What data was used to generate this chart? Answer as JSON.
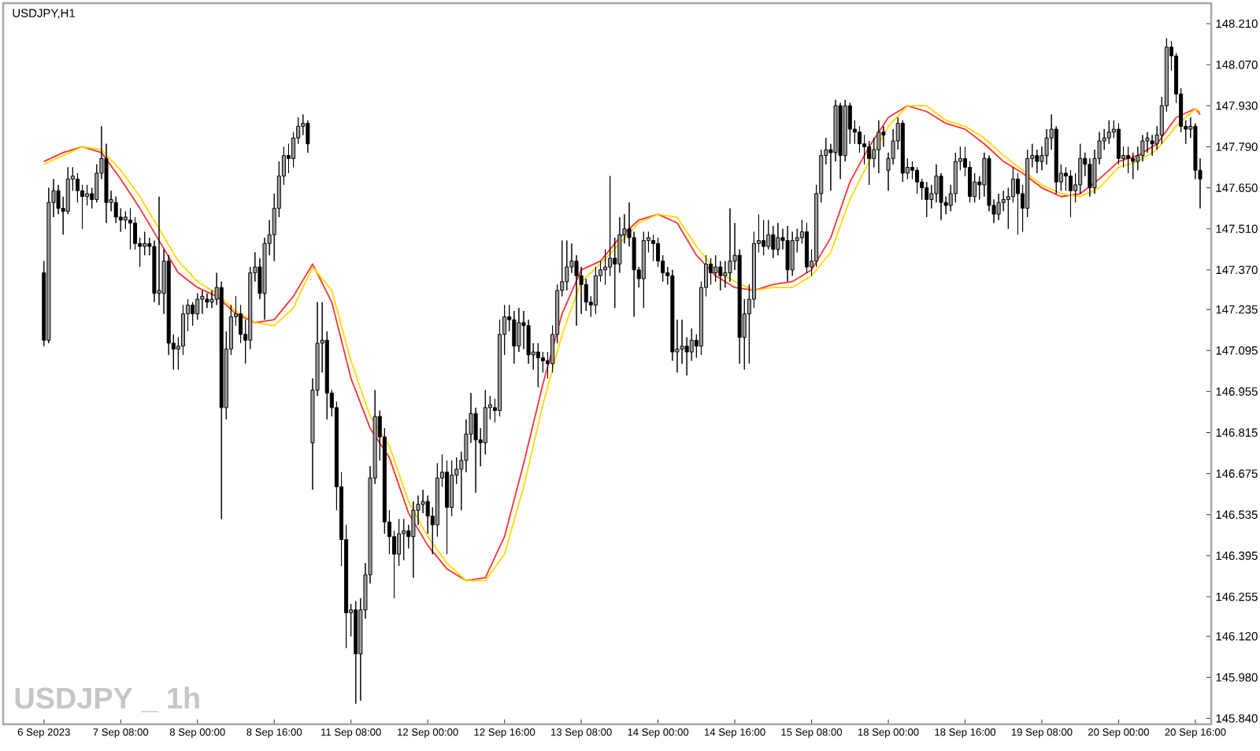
{
  "chart_data": {
    "type": "candlestick",
    "title": "USDJPY,H1",
    "annotations": [
      "USDJPY _ 1h"
    ],
    "categories": [
      "6 Sep 2023",
      null,
      null,
      null,
      null,
      null,
      null,
      null,
      null,
      null,
      null,
      null,
      null,
      null,
      null,
      null,
      "7 Sep 08:00",
      null,
      null,
      null,
      null,
      null,
      null,
      null,
      null,
      null,
      null,
      null,
      null,
      null,
      null,
      null,
      "8 Sep 00:00",
      null,
      null,
      null,
      null,
      null,
      null,
      null,
      null,
      null,
      null,
      null,
      null,
      null,
      null,
      null,
      "8 Sep 16:00",
      null,
      null,
      null,
      null,
      null,
      null,
      null,
      null,
      null,
      null,
      null,
      null,
      null,
      null,
      null,
      "11 Sep 08:00",
      null,
      null,
      null,
      null,
      null,
      null,
      null,
      null,
      null,
      null,
      null,
      null,
      null,
      null,
      null,
      "12 Sep 00:00",
      null,
      null,
      null,
      null,
      null,
      null,
      null,
      null,
      null,
      null,
      null,
      null,
      null,
      null,
      null,
      "12 Sep 16:00",
      null,
      null,
      null,
      null,
      null,
      null,
      null,
      null,
      null,
      null,
      null,
      null,
      null,
      null,
      null,
      "13 Sep 08:00",
      null,
      null,
      null,
      null,
      null,
      null,
      null,
      null,
      null,
      null,
      null,
      null,
      null,
      null,
      null,
      "14 Sep 00:00",
      null,
      null,
      null,
      null,
      null,
      null,
      null,
      null,
      null,
      null,
      null,
      null,
      null,
      null,
      null,
      "14 Sep 16:00",
      null,
      null,
      null,
      null,
      null,
      null,
      null,
      null,
      null,
      null,
      null,
      null,
      null,
      null,
      null,
      "15 Sep 08:00",
      null,
      null,
      null,
      null,
      null,
      null,
      null,
      null,
      null,
      null,
      null,
      null,
      null,
      null,
      null,
      "18 Sep 00:00",
      null,
      null,
      null,
      null,
      null,
      null,
      null,
      null,
      null,
      null,
      null,
      null,
      null,
      null,
      null,
      "18 Sep 16:00",
      null,
      null,
      null,
      null,
      null,
      null,
      null,
      null,
      null,
      null,
      null,
      null,
      null,
      null,
      null,
      "19 Sep 08:00",
      null,
      null,
      null,
      null,
      null,
      null,
      null,
      null,
      null,
      null,
      null,
      null,
      null,
      null,
      null,
      "20 Sep 00:00",
      null,
      null,
      null,
      null,
      null,
      null,
      null,
      null,
      null,
      null,
      null,
      null,
      null,
      null,
      null,
      "20 Sep 16:00",
      null
    ],
    "ohlc": [
      [
        147.36,
        147.4,
        147.11,
        147.13
      ],
      [
        147.13,
        147.65,
        147.12,
        147.6
      ],
      [
        147.6,
        147.68,
        147.55,
        147.64
      ],
      [
        147.64,
        147.66,
        147.56,
        147.58
      ],
      [
        147.58,
        147.62,
        147.49,
        147.57
      ],
      [
        147.57,
        147.72,
        147.56,
        147.68
      ],
      [
        147.68,
        147.72,
        147.64,
        147.69
      ],
      [
        147.68,
        147.7,
        147.6,
        147.64
      ],
      [
        147.64,
        147.66,
        147.51,
        147.62
      ],
      [
        147.62,
        147.66,
        147.59,
        147.63
      ],
      [
        147.63,
        147.65,
        147.58,
        147.61
      ],
      [
        147.61,
        147.73,
        147.6,
        147.7
      ],
      [
        147.7,
        147.86,
        147.68,
        147.75
      ],
      [
        147.75,
        147.8,
        147.53,
        147.6
      ],
      [
        147.6,
        147.64,
        147.57,
        147.61
      ],
      [
        147.6,
        147.62,
        147.53,
        147.55
      ],
      [
        147.55,
        147.58,
        147.5,
        147.54
      ],
      [
        147.54,
        147.57,
        147.51,
        147.55
      ],
      [
        147.54,
        147.58,
        147.44,
        147.53
      ],
      [
        147.53,
        147.55,
        147.44,
        147.46
      ],
      [
        147.46,
        147.48,
        147.38,
        147.45
      ],
      [
        147.45,
        147.5,
        147.42,
        147.46
      ],
      [
        147.46,
        147.48,
        147.42,
        147.45
      ],
      [
        147.45,
        147.47,
        147.26,
        147.29
      ],
      [
        147.29,
        147.62,
        147.25,
        147.3
      ],
      [
        147.29,
        147.44,
        147.22,
        147.4
      ],
      [
        147.4,
        147.42,
        147.08,
        147.12
      ],
      [
        147.12,
        147.15,
        147.03,
        147.1
      ],
      [
        147.1,
        147.14,
        147.03,
        147.11
      ],
      [
        147.11,
        147.25,
        147.08,
        147.22
      ],
      [
        147.22,
        147.27,
        147.16,
        147.25
      ],
      [
        147.25,
        147.26,
        147.18,
        147.22
      ],
      [
        147.22,
        147.29,
        147.2,
        147.27
      ],
      [
        147.27,
        147.3,
        147.22,
        147.28
      ],
      [
        147.27,
        147.29,
        147.24,
        147.26
      ],
      [
        147.26,
        147.3,
        147.24,
        147.27
      ],
      [
        147.27,
        147.36,
        147.25,
        147.31
      ],
      [
        147.31,
        147.33,
        146.52,
        146.9
      ],
      [
        146.9,
        147.16,
        146.86,
        147.1
      ],
      [
        147.1,
        147.25,
        147.08,
        147.21
      ],
      [
        147.21,
        147.28,
        147.18,
        147.22
      ],
      [
        147.22,
        147.25,
        147.12,
        147.15
      ],
      [
        147.15,
        147.2,
        147.05,
        147.13
      ],
      [
        147.13,
        147.38,
        147.1,
        147.36
      ],
      [
        147.36,
        147.43,
        147.33,
        147.38
      ],
      [
        147.38,
        147.41,
        147.27,
        147.29
      ],
      [
        147.29,
        147.48,
        147.2,
        147.46
      ],
      [
        147.46,
        147.54,
        147.42,
        147.49
      ],
      [
        147.49,
        147.63,
        147.4,
        147.58
      ],
      [
        147.58,
        147.74,
        147.55,
        147.69
      ],
      [
        147.69,
        147.79,
        147.66,
        147.76
      ],
      [
        147.76,
        147.8,
        147.7,
        147.75
      ],
      [
        147.75,
        147.84,
        147.72,
        147.82
      ],
      [
        147.82,
        147.89,
        147.8,
        147.86
      ],
      [
        147.86,
        147.9,
        147.83,
        147.87
      ],
      [
        147.87,
        147.88,
        147.77,
        147.8
      ],
      [
        146.78,
        147.0,
        146.62,
        146.96
      ],
      [
        146.96,
        147.26,
        146.94,
        147.12
      ],
      [
        147.12,
        147.26,
        147.02,
        147.13
      ],
      [
        147.13,
        147.16,
        146.86,
        146.95
      ],
      [
        146.95,
        146.96,
        146.87,
        146.9
      ],
      [
        146.9,
        146.92,
        146.55,
        146.63
      ],
      [
        146.63,
        146.68,
        146.36,
        146.45
      ],
      [
        146.45,
        146.5,
        146.08,
        146.2
      ],
      [
        146.2,
        146.23,
        146.12,
        146.21
      ],
      [
        146.21,
        146.24,
        145.89,
        146.06
      ],
      [
        146.06,
        146.25,
        145.9,
        146.21
      ],
      [
        146.21,
        146.37,
        146.18,
        146.33
      ],
      [
        146.33,
        146.7,
        146.3,
        146.66
      ],
      [
        146.66,
        146.96,
        146.64,
        146.87
      ],
      [
        146.87,
        146.89,
        146.72,
        146.8
      ],
      [
        146.8,
        146.83,
        146.47,
        146.51
      ],
      [
        146.51,
        146.55,
        146.4,
        146.46
      ],
      [
        146.46,
        146.48,
        146.25,
        146.4
      ],
      [
        146.4,
        146.52,
        146.36,
        146.47
      ],
      [
        146.47,
        146.52,
        146.38,
        146.48
      ],
      [
        146.48,
        146.5,
        146.42,
        146.46
      ],
      [
        146.46,
        146.58,
        146.32,
        146.55
      ],
      [
        146.55,
        146.6,
        146.5,
        146.57
      ],
      [
        146.57,
        146.62,
        146.54,
        146.58
      ],
      [
        146.58,
        146.6,
        146.47,
        146.53
      ],
      [
        146.53,
        146.56,
        146.4,
        146.5
      ],
      [
        146.5,
        146.71,
        146.46,
        146.66
      ],
      [
        146.66,
        146.74,
        146.63,
        146.68
      ],
      [
        146.68,
        146.72,
        146.4,
        146.56
      ],
      [
        146.56,
        146.72,
        146.53,
        146.67
      ],
      [
        146.67,
        146.73,
        146.64,
        146.69
      ],
      [
        146.69,
        146.75,
        146.55,
        146.72
      ],
      [
        146.72,
        146.86,
        146.68,
        146.81
      ],
      [
        146.81,
        146.95,
        146.78,
        146.88
      ],
      [
        146.88,
        146.9,
        146.61,
        146.79
      ],
      [
        146.79,
        146.83,
        146.7,
        146.78
      ],
      [
        146.78,
        146.96,
        146.74,
        146.9
      ],
      [
        146.9,
        146.94,
        146.86,
        146.91
      ],
      [
        146.9,
        146.93,
        146.85,
        146.89
      ],
      [
        146.89,
        147.2,
        146.87,
        147.15
      ],
      [
        147.15,
        147.25,
        147.08,
        147.21
      ],
      [
        147.21,
        147.25,
        147.16,
        147.2
      ],
      [
        147.2,
        147.23,
        147.05,
        147.11
      ],
      [
        147.11,
        147.24,
        147.09,
        147.19
      ],
      [
        147.19,
        147.23,
        147.1,
        147.18
      ],
      [
        147.18,
        147.2,
        147.05,
        147.08
      ],
      [
        147.08,
        147.12,
        147.03,
        147.09
      ],
      [
        147.09,
        147.12,
        146.97,
        147.07
      ],
      [
        147.07,
        147.09,
        147.02,
        147.06
      ],
      [
        147.06,
        147.09,
        147.0,
        147.05
      ],
      [
        147.05,
        147.18,
        147.02,
        147.15
      ],
      [
        147.15,
        147.32,
        147.12,
        147.3
      ],
      [
        147.3,
        147.47,
        147.28,
        147.33
      ],
      [
        147.33,
        147.47,
        147.3,
        147.38
      ],
      [
        147.38,
        147.46,
        147.36,
        147.4
      ],
      [
        147.4,
        147.42,
        147.18,
        147.35
      ],
      [
        147.35,
        147.38,
        147.22,
        147.32
      ],
      [
        147.32,
        147.34,
        147.23,
        147.26
      ],
      [
        147.26,
        147.28,
        147.21,
        147.25
      ],
      [
        147.25,
        147.38,
        147.22,
        147.35
      ],
      [
        147.35,
        147.4,
        147.33,
        147.37
      ],
      [
        147.37,
        147.44,
        147.32,
        147.38
      ],
      [
        147.38,
        147.69,
        147.35,
        147.41
      ],
      [
        147.41,
        147.48,
        147.24,
        147.39
      ],
      [
        147.39,
        147.55,
        147.36,
        147.49
      ],
      [
        147.49,
        147.56,
        147.46,
        147.51
      ],
      [
        147.51,
        147.6,
        147.45,
        147.48
      ],
      [
        147.48,
        147.5,
        147.21,
        147.37
      ],
      [
        147.37,
        147.38,
        147.31,
        147.34
      ],
      [
        147.34,
        147.5,
        147.24,
        147.47
      ],
      [
        147.47,
        147.5,
        147.43,
        147.48
      ],
      [
        147.47,
        147.49,
        147.4,
        147.46
      ],
      [
        147.46,
        147.48,
        147.38,
        147.4
      ],
      [
        147.4,
        147.42,
        147.33,
        147.36
      ],
      [
        147.36,
        147.38,
        147.32,
        147.35
      ],
      [
        147.35,
        147.37,
        147.06,
        147.09
      ],
      [
        147.09,
        147.2,
        147.02,
        147.1
      ],
      [
        147.1,
        147.2,
        147.05,
        147.11
      ],
      [
        147.11,
        147.14,
        147.01,
        147.09
      ],
      [
        147.09,
        147.17,
        147.06,
        147.13
      ],
      [
        147.13,
        147.15,
        147.07,
        147.11
      ],
      [
        147.11,
        147.33,
        147.08,
        147.31
      ],
      [
        147.31,
        147.42,
        147.28,
        147.39
      ],
      [
        147.39,
        147.41,
        147.32,
        147.36
      ],
      [
        147.36,
        147.42,
        147.33,
        147.38
      ],
      [
        147.38,
        147.4,
        147.3,
        147.35
      ],
      [
        147.35,
        147.4,
        147.31,
        147.36
      ],
      [
        147.36,
        147.58,
        147.33,
        147.4
      ],
      [
        147.4,
        147.53,
        147.37,
        147.42
      ],
      [
        147.42,
        147.44,
        147.05,
        147.14
      ],
      [
        147.14,
        147.27,
        147.03,
        147.22
      ],
      [
        147.22,
        147.32,
        147.05,
        147.27
      ],
      [
        147.27,
        147.5,
        147.24,
        147.46
      ],
      [
        147.46,
        147.56,
        147.43,
        147.47
      ],
      [
        147.47,
        147.54,
        147.42,
        147.45
      ],
      [
        147.45,
        147.54,
        147.44,
        147.49
      ],
      [
        147.49,
        147.52,
        147.41,
        147.44
      ],
      [
        147.44,
        147.53,
        147.42,
        147.48
      ],
      [
        147.48,
        147.51,
        147.44,
        147.47
      ],
      [
        147.47,
        147.52,
        147.33,
        147.37
      ],
      [
        147.37,
        147.5,
        147.35,
        147.47
      ],
      [
        147.47,
        147.51,
        147.43,
        147.48
      ],
      [
        147.48,
        147.54,
        147.46,
        147.5
      ],
      [
        147.5,
        147.53,
        147.36,
        147.38
      ],
      [
        147.38,
        147.44,
        147.35,
        147.4
      ],
      [
        147.4,
        147.66,
        147.38,
        147.63
      ],
      [
        147.63,
        147.78,
        147.6,
        147.76
      ],
      [
        147.76,
        147.82,
        147.73,
        147.78
      ],
      [
        147.78,
        147.8,
        147.64,
        147.77
      ],
      [
        147.77,
        147.95,
        147.74,
        147.93
      ],
      [
        147.93,
        147.94,
        147.68,
        147.76
      ],
      [
        147.76,
        147.95,
        147.74,
        147.93
      ],
      [
        147.93,
        147.94,
        147.8,
        147.85
      ],
      [
        147.85,
        147.88,
        147.8,
        147.84
      ],
      [
        147.84,
        147.86,
        147.77,
        147.8
      ],
      [
        147.8,
        147.83,
        147.73,
        147.79
      ],
      [
        147.79,
        147.81,
        147.66,
        147.75
      ],
      [
        147.75,
        147.82,
        147.72,
        147.78
      ],
      [
        147.78,
        147.88,
        147.7,
        147.84
      ],
      [
        147.84,
        147.86,
        147.79,
        147.83
      ],
      [
        147.71,
        147.77,
        147.64,
        147.75
      ],
      [
        147.75,
        147.85,
        147.73,
        147.81
      ],
      [
        147.81,
        147.89,
        147.78,
        147.87
      ],
      [
        147.87,
        147.88,
        147.67,
        147.7
      ],
      [
        147.7,
        147.75,
        147.68,
        147.72
      ],
      [
        147.72,
        147.74,
        147.68,
        147.71
      ],
      [
        147.71,
        147.72,
        147.63,
        147.67
      ],
      [
        147.67,
        147.68,
        147.61,
        147.65
      ],
      [
        147.65,
        147.67,
        147.55,
        147.61
      ],
      [
        147.61,
        147.66,
        147.58,
        147.63
      ],
      [
        147.63,
        147.73,
        147.6,
        147.69
      ],
      [
        147.69,
        147.7,
        147.54,
        147.6
      ],
      [
        147.6,
        147.62,
        147.56,
        147.59
      ],
      [
        147.59,
        147.66,
        147.57,
        147.63
      ],
      [
        147.63,
        147.77,
        147.6,
        147.74
      ],
      [
        147.74,
        147.79,
        147.71,
        147.75
      ],
      [
        147.75,
        147.79,
        147.69,
        147.72
      ],
      [
        147.72,
        147.74,
        147.6,
        147.62
      ],
      [
        147.62,
        147.7,
        147.6,
        147.67
      ],
      [
        147.67,
        147.69,
        147.61,
        147.66
      ],
      [
        147.66,
        147.77,
        147.62,
        147.75
      ],
      [
        147.75,
        147.76,
        147.57,
        147.59
      ],
      [
        147.59,
        147.61,
        147.53,
        147.56
      ],
      [
        147.56,
        147.63,
        147.54,
        147.6
      ],
      [
        147.6,
        147.64,
        147.57,
        147.61
      ],
      [
        147.61,
        147.65,
        147.51,
        147.62
      ],
      [
        147.62,
        147.72,
        147.6,
        147.68
      ],
      [
        147.68,
        147.7,
        147.49,
        147.63
      ],
      [
        147.63,
        147.66,
        147.5,
        147.58
      ],
      [
        147.58,
        147.78,
        147.55,
        147.75
      ],
      [
        147.75,
        147.8,
        147.72,
        147.76
      ],
      [
        147.76,
        147.78,
        147.7,
        147.74
      ],
      [
        147.74,
        147.79,
        147.71,
        147.76
      ],
      [
        147.76,
        147.85,
        147.73,
        147.82
      ],
      [
        147.82,
        147.9,
        147.78,
        147.85
      ],
      [
        147.85,
        147.86,
        147.63,
        147.67
      ],
      [
        147.67,
        147.73,
        147.64,
        147.7
      ],
      [
        147.7,
        147.72,
        147.64,
        147.69
      ],
      [
        147.69,
        147.71,
        147.55,
        147.64
      ],
      [
        147.64,
        147.7,
        147.6,
        147.66
      ],
      [
        147.66,
        147.8,
        147.63,
        147.75
      ],
      [
        147.75,
        147.77,
        147.69,
        147.73
      ],
      [
        147.73,
        147.75,
        147.62,
        147.65
      ],
      [
        147.65,
        147.78,
        147.63,
        147.75
      ],
      [
        147.75,
        147.84,
        147.73,
        147.81
      ],
      [
        147.81,
        147.85,
        147.78,
        147.82
      ],
      [
        147.82,
        147.88,
        147.8,
        147.84
      ],
      [
        147.84,
        147.88,
        147.82,
        147.85
      ],
      [
        147.85,
        147.87,
        147.73,
        147.75
      ],
      [
        147.75,
        147.79,
        147.72,
        147.76
      ],
      [
        147.76,
        147.79,
        147.7,
        147.75
      ],
      [
        147.75,
        147.77,
        147.68,
        147.74
      ],
      [
        147.74,
        147.79,
        147.71,
        147.76
      ],
      [
        147.76,
        147.83,
        147.74,
        147.81
      ],
      [
        147.81,
        147.84,
        147.77,
        147.82
      ],
      [
        147.81,
        147.83,
        147.76,
        147.8
      ],
      [
        147.8,
        147.86,
        147.78,
        147.83
      ],
      [
        147.83,
        147.96,
        147.8,
        147.93
      ],
      [
        147.93,
        148.16,
        147.91,
        148.13
      ],
      [
        148.13,
        148.15,
        148.05,
        148.1
      ],
      [
        148.1,
        148.11,
        147.94,
        147.97
      ],
      [
        147.97,
        147.99,
        147.84,
        147.86
      ],
      [
        147.86,
        147.88,
        147.8,
        147.85
      ],
      [
        147.85,
        147.89,
        147.82,
        147.86
      ],
      [
        147.86,
        147.87,
        147.68,
        147.71
      ],
      [
        147.71,
        147.75,
        147.58,
        147.68
      ]
    ],
    "series": [
      {
        "type": "line",
        "color": "#ff3333",
        "values": [
          147.74,
          null,
          null,
          null,
          147.77,
          null,
          null,
          null,
          147.79,
          null,
          null,
          null,
          147.77,
          null,
          null,
          null,
          147.68,
          null,
          null,
          null,
          147.58,
          null,
          null,
          null,
          147.47,
          null,
          null,
          null,
          147.36,
          null,
          null,
          null,
          147.31,
          null,
          null,
          null,
          147.28,
          null,
          null,
          null,
          147.22,
          null,
          null,
          null,
          147.19,
          null,
          null,
          null,
          147.2,
          null,
          null,
          null,
          147.28,
          null,
          null,
          null,
          147.39,
          null,
          null,
          null,
          147.26,
          null,
          null,
          null,
          147.0,
          null,
          null,
          null,
          146.83,
          null,
          null,
          null,
          146.73,
          null,
          null,
          null,
          146.54,
          null,
          null,
          null,
          146.43,
          null,
          null,
          null,
          146.35,
          null,
          null,
          null,
          146.31,
          null,
          null,
          null,
          146.32,
          null,
          null,
          null,
          146.46,
          null,
          null,
          null,
          146.71,
          null,
          null,
          null,
          146.98,
          null,
          null,
          null,
          147.22,
          null,
          null,
          null,
          147.37,
          null,
          null,
          null,
          147.4,
          null,
          null,
          null,
          147.48,
          null,
          null,
          null,
          147.54,
          null,
          null,
          null,
          147.56,
          null,
          null,
          null,
          147.53,
          null,
          null,
          null,
          147.42,
          null,
          null,
          null,
          147.35,
          null,
          null,
          null,
          147.31,
          null,
          null,
          null,
          147.3,
          null,
          null,
          null,
          147.32,
          null,
          null,
          null,
          147.33,
          null,
          null,
          null,
          147.37,
          null,
          null,
          null,
          147.48,
          null,
          null,
          null,
          147.67,
          null,
          null,
          null,
          147.79,
          null,
          null,
          null,
          147.89,
          null,
          null,
          null,
          147.93,
          null,
          null,
          null,
          147.91,
          null,
          null,
          null,
          147.87,
          null,
          null,
          null,
          147.85,
          null,
          null,
          null,
          147.8,
          null,
          null,
          null,
          147.74,
          null,
          null,
          null,
          147.7,
          null,
          null,
          null,
          147.65,
          null,
          null,
          null,
          147.62,
          null,
          null,
          null,
          147.63,
          null,
          null,
          null,
          147.68,
          null,
          null,
          null,
          147.74,
          null,
          null,
          null,
          147.76,
          null,
          null,
          null,
          147.8,
          null,
          null,
          null,
          147.89,
          null,
          null,
          null,
          147.92,
          147.9
        ]
      },
      {
        "type": "line",
        "color": "#ffd800",
        "values": [
          147.73,
          null,
          null,
          null,
          147.76,
          null,
          null,
          null,
          147.79,
          null,
          null,
          null,
          147.78,
          null,
          null,
          null,
          147.71,
          null,
          null,
          null,
          147.62,
          null,
          null,
          null,
          147.51,
          null,
          null,
          null,
          147.4,
          null,
          null,
          null,
          147.33,
          null,
          null,
          null,
          147.29,
          null,
          null,
          null,
          147.23,
          null,
          null,
          null,
          147.19,
          null,
          null,
          null,
          147.18,
          null,
          null,
          null,
          147.24,
          null,
          null,
          null,
          147.38,
          null,
          null,
          null,
          147.3,
          null,
          null,
          null,
          147.06,
          null,
          null,
          null,
          146.87,
          null,
          null,
          null,
          146.77,
          null,
          null,
          null,
          146.58,
          null,
          null,
          null,
          146.46,
          null,
          null,
          null,
          146.37,
          null,
          null,
          null,
          146.31,
          null,
          null,
          null,
          146.31,
          null,
          null,
          null,
          146.4,
          null,
          null,
          null,
          146.63,
          null,
          null,
          null,
          146.91,
          null,
          null,
          null,
          147.15,
          null,
          null,
          null,
          147.33,
          null,
          null,
          null,
          147.39,
          null,
          null,
          null,
          147.46,
          null,
          null,
          null,
          147.53,
          null,
          null,
          null,
          147.56,
          null,
          null,
          null,
          147.55,
          null,
          null,
          null,
          147.45,
          null,
          null,
          null,
          147.37,
          null,
          null,
          null,
          147.33,
          null,
          null,
          null,
          147.3,
          null,
          null,
          null,
          147.31,
          null,
          null,
          null,
          147.31,
          null,
          null,
          null,
          147.35,
          null,
          null,
          null,
          147.43,
          null,
          null,
          null,
          147.61,
          null,
          null,
          null,
          147.74,
          null,
          null,
          null,
          147.86,
          null,
          null,
          null,
          147.93,
          null,
          null,
          null,
          147.93,
          null,
          null,
          null,
          147.88,
          null,
          null,
          null,
          147.86,
          null,
          null,
          null,
          147.82,
          null,
          null,
          null,
          147.76,
          null,
          null,
          null,
          147.71,
          null,
          null,
          null,
          147.66,
          null,
          null,
          null,
          147.63,
          null,
          null,
          null,
          147.62,
          null,
          null,
          null,
          147.65,
          null,
          null,
          null,
          147.72,
          null,
          null,
          null,
          147.74,
          null,
          null,
          null,
          147.78,
          null,
          null,
          null,
          147.86,
          null,
          null,
          null,
          147.92,
          147.91
        ]
      }
    ],
    "ylim": [
      145.82,
      148.28
    ],
    "yticks": [
      {
        "value": 148.21,
        "label": "148.210"
      },
      {
        "value": 148.07,
        "label": "148.070"
      },
      {
        "value": 147.93,
        "label": "147.930"
      },
      {
        "value": 147.79,
        "label": "147.790"
      },
      {
        "value": 147.65,
        "label": "147.650"
      },
      {
        "value": 147.51,
        "label": "147.510"
      },
      {
        "value": 147.37,
        "label": "147.370"
      },
      {
        "value": 147.235,
        "label": "147.235"
      },
      {
        "value": 147.095,
        "label": "147.095"
      },
      {
        "value": 146.955,
        "label": "146.955"
      },
      {
        "value": 146.815,
        "label": "146.815"
      },
      {
        "value": 146.675,
        "label": "146.675"
      },
      {
        "value": 146.535,
        "label": "146.535"
      },
      {
        "value": 146.395,
        "label": "146.395"
      },
      {
        "value": 146.255,
        "label": "146.255"
      },
      {
        "value": 146.12,
        "label": "146.120"
      },
      {
        "value": 145.98,
        "label": "145.980"
      },
      {
        "value": 145.84,
        "label": "145.840"
      }
    ]
  }
}
